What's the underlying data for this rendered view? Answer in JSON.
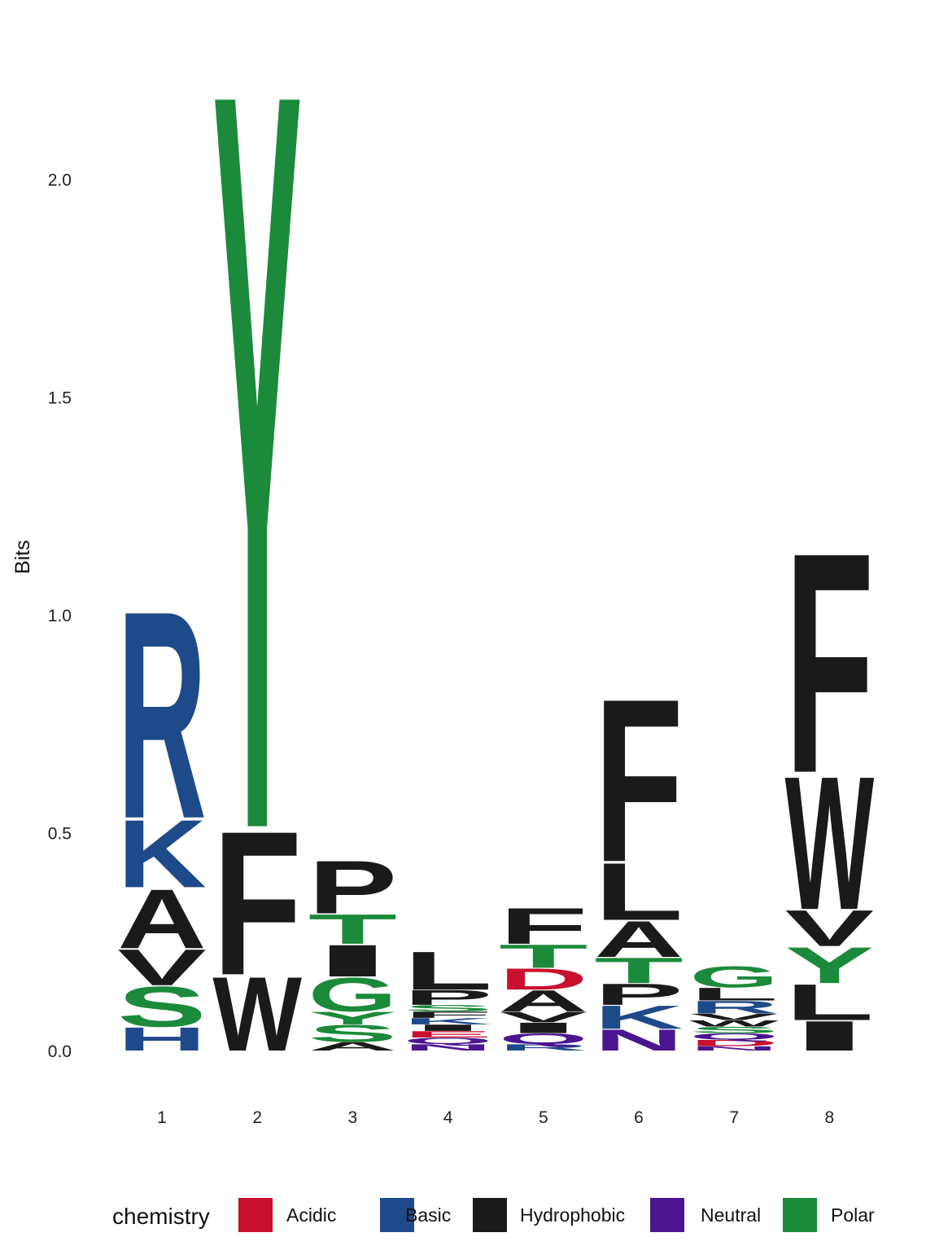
{
  "chart_data": {
    "type": "sequence-logo",
    "ylabel": "Bits",
    "ylim": [
      0,
      2.3
    ],
    "yticks": [
      {
        "value": 0.0,
        "label": "0.0"
      },
      {
        "value": 0.5,
        "label": "0.5"
      },
      {
        "value": 1.0,
        "label": "1.0"
      },
      {
        "value": 1.5,
        "label": "1.5"
      },
      {
        "value": 2.0,
        "label": "2.0"
      }
    ],
    "grid": false,
    "legend": {
      "title": "chemistry",
      "placement": "bottom",
      "entries": [
        {
          "name": "Acidic",
          "color": "#C8102E"
        },
        {
          "name": "Basic",
          "color": "#1F4A8A"
        },
        {
          "name": "Hydrophobic",
          "color": "#1A1A1A"
        },
        {
          "name": "Neutral",
          "color": "#4B1590"
        },
        {
          "name": "Polar",
          "color": "#1B8A3A"
        }
      ]
    },
    "positions": [
      {
        "label": "1",
        "letters": [
          {
            "aa": "H",
            "bits": 0.055,
            "chem": "Basic"
          },
          {
            "aa": "S",
            "bits": 0.095,
            "chem": "Polar"
          },
          {
            "aa": "V",
            "bits": 0.085,
            "chem": "Hydrophobic"
          },
          {
            "aa": "A",
            "bits": 0.14,
            "chem": "Hydrophobic"
          },
          {
            "aa": "K",
            "bits": 0.16,
            "chem": "Basic"
          },
          {
            "aa": "R",
            "bits": 0.49,
            "chem": "Basic"
          }
        ]
      },
      {
        "label": "2",
        "letters": [
          {
            "aa": "W",
            "bits": 0.175,
            "chem": "Hydrophobic"
          },
          {
            "aa": "F",
            "bits": 0.34,
            "chem": "Hydrophobic"
          },
          {
            "aa": "Y",
            "bits": 1.745,
            "chem": "Polar"
          }
        ]
      },
      {
        "label": "3",
        "letters": [
          {
            "aa": "A",
            "bits": 0.02,
            "chem": "Hydrophobic"
          },
          {
            "aa": "S",
            "bits": 0.04,
            "chem": "Polar"
          },
          {
            "aa": "Y",
            "bits": 0.03,
            "chem": "Polar"
          },
          {
            "aa": "G",
            "bits": 0.08,
            "chem": "Polar"
          },
          {
            "aa": "I",
            "bits": 0.075,
            "chem": "Hydrophobic"
          },
          {
            "aa": "T",
            "bits": 0.07,
            "chem": "Polar"
          },
          {
            "aa": "P",
            "bits": 0.125,
            "chem": "Hydrophobic"
          }
        ]
      },
      {
        "label": "4",
        "letters": [
          {
            "aa": "N",
            "bits": 0.015,
            "chem": "Neutral"
          },
          {
            "aa": "Q",
            "bits": 0.015,
            "chem": "Neutral"
          },
          {
            "aa": "E",
            "bits": 0.015,
            "chem": "Acidic"
          },
          {
            "aa": "I",
            "bits": 0.015,
            "chem": "Hydrophobic"
          },
          {
            "aa": "K",
            "bits": 0.015,
            "chem": "Basic"
          },
          {
            "aa": "F",
            "bits": 0.015,
            "chem": "Hydrophobic"
          },
          {
            "aa": "S",
            "bits": 0.015,
            "chem": "Polar"
          },
          {
            "aa": "P",
            "bits": 0.035,
            "chem": "Hydrophobic"
          },
          {
            "aa": "L",
            "bits": 0.09,
            "chem": "Hydrophobic"
          }
        ]
      },
      {
        "label": "5",
        "letters": [
          {
            "aa": "R",
            "bits": 0.015,
            "chem": "Basic"
          },
          {
            "aa": "Q",
            "bits": 0.025,
            "chem": "Neutral"
          },
          {
            "aa": "I",
            "bits": 0.025,
            "chem": "Hydrophobic"
          },
          {
            "aa": "V",
            "bits": 0.025,
            "chem": "Hydrophobic"
          },
          {
            "aa": "A",
            "bits": 0.05,
            "chem": "Hydrophobic"
          },
          {
            "aa": "D",
            "bits": 0.05,
            "chem": "Acidic"
          },
          {
            "aa": "T",
            "bits": 0.055,
            "chem": "Polar"
          },
          {
            "aa": "F",
            "bits": 0.085,
            "chem": "Hydrophobic"
          }
        ]
      },
      {
        "label": "6",
        "letters": [
          {
            "aa": "N",
            "bits": 0.05,
            "chem": "Neutral"
          },
          {
            "aa": "K",
            "bits": 0.055,
            "chem": "Basic"
          },
          {
            "aa": "P",
            "bits": 0.05,
            "chem": "Hydrophobic"
          },
          {
            "aa": "T",
            "bits": 0.06,
            "chem": "Polar"
          },
          {
            "aa": "A",
            "bits": 0.085,
            "chem": "Hydrophobic"
          },
          {
            "aa": "L",
            "bits": 0.135,
            "chem": "Hydrophobic"
          },
          {
            "aa": "F",
            "bits": 0.385,
            "chem": "Hydrophobic"
          }
        ]
      },
      {
        "label": "7",
        "letters": [
          {
            "aa": "N",
            "bits": 0.01,
            "chem": "Neutral"
          },
          {
            "aa": "D",
            "bits": 0.015,
            "chem": "Acidic"
          },
          {
            "aa": "Q",
            "bits": 0.015,
            "chem": "Neutral"
          },
          {
            "aa": "S",
            "bits": 0.015,
            "chem": "Polar"
          },
          {
            "aa": "W",
            "bits": 0.015,
            "chem": "Hydrophobic"
          },
          {
            "aa": "V",
            "bits": 0.015,
            "chem": "Hydrophobic"
          },
          {
            "aa": "R",
            "bits": 0.03,
            "chem": "Basic"
          },
          {
            "aa": "L",
            "bits": 0.03,
            "chem": "Hydrophobic"
          },
          {
            "aa": "G",
            "bits": 0.05,
            "chem": "Polar"
          }
        ]
      },
      {
        "label": "8",
        "letters": [
          {
            "aa": "I",
            "bits": 0.07,
            "chem": "Hydrophobic"
          },
          {
            "aa": "L",
            "bits": 0.085,
            "chem": "Hydrophobic"
          },
          {
            "aa": "Y",
            "bits": 0.085,
            "chem": "Polar"
          },
          {
            "aa": "V",
            "bits": 0.085,
            "chem": "Hydrophobic"
          },
          {
            "aa": "W",
            "bits": 0.315,
            "chem": "Hydrophobic"
          },
          {
            "aa": "F",
            "bits": 0.52,
            "chem": "Hydrophobic"
          }
        ]
      }
    ]
  }
}
